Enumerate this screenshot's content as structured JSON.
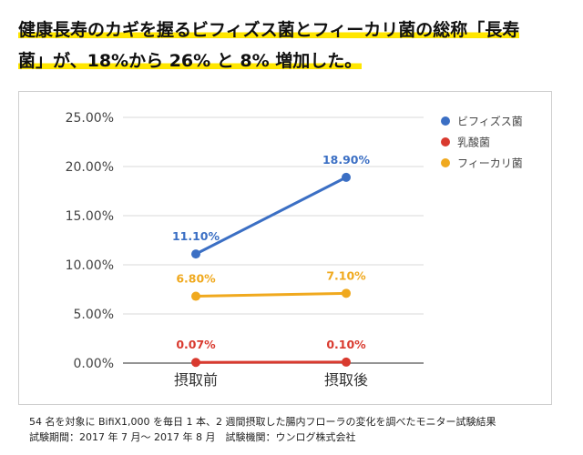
{
  "headline": {
    "line1": "健康長寿のカギを握るビフィズス菌とフィーカリ菌の総称「長寿",
    "line2": "菌」が、18%から 26% と 8% 増加した。"
  },
  "footnote": {
    "line1": "54 名を対象に BifiX1,000 を毎日 1 本、2 週間摂取した腸内フローラの変化を調べたモニター試験結果",
    "line2": "試験期間：2017 年 7 月～ 2017 年 8 月　試験機関：ウンログ株式会社"
  },
  "chart_data": {
    "type": "line",
    "title": "",
    "xlabel": "",
    "ylabel": "",
    "categories": [
      "摂取前",
      "摂取後"
    ],
    "ylim": [
      0,
      25
    ],
    "y_ticks": [
      "0.00%",
      "5.00%",
      "10.00%",
      "15.00%",
      "20.00%",
      "25.00%"
    ],
    "y_tick_values": [
      0,
      5,
      10,
      15,
      20,
      25
    ],
    "grid": true,
    "legend_position": "top-right",
    "series": [
      {
        "name": "ビフィズス菌",
        "values": [
          11.1,
          18.9
        ],
        "labels": [
          "11.10%",
          "18.90%"
        ],
        "color": "#3b6fc4"
      },
      {
        "name": "乳酸菌",
        "values": [
          0.07,
          0.1
        ],
        "labels": [
          "0.07%",
          "0.10%"
        ],
        "color": "#d93a2f"
      },
      {
        "name": "フィーカリ菌",
        "values": [
          6.8,
          7.1
        ],
        "labels": [
          "6.80%",
          "7.10%"
        ],
        "color": "#f0a91e"
      }
    ]
  }
}
